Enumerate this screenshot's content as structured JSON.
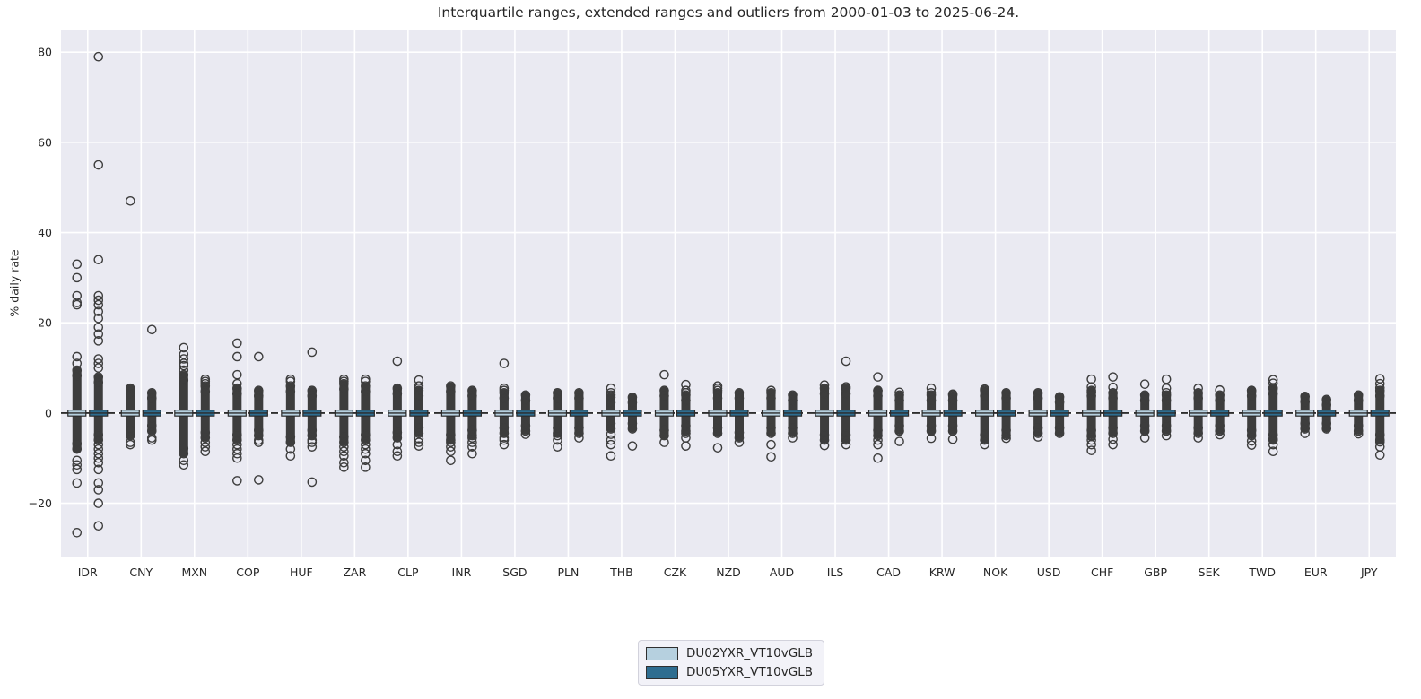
{
  "chart_data": {
    "type": "boxplot",
    "title": "Interquartile ranges, extended ranges and outliers from 2000-01-03 to 2025-06-24.",
    "date_range": {
      "from": "2000-01-03",
      "to": "2025-06-24"
    },
    "xlabel": "",
    "ylabel": "% daily rate",
    "ylim": [
      -32,
      85
    ],
    "yticks": [
      80,
      60,
      40,
      20,
      0,
      -20
    ],
    "grid": true,
    "zero_line": {
      "value": 0,
      "style": "dashed",
      "color": "#111111"
    },
    "legend_position": "bottom-center",
    "box": {
      "q1": -0.65,
      "median": 0,
      "q3": 0.65
    },
    "colors": {
      "plot_background": "#eaeaf2",
      "grid": "#ffffff",
      "ink": "#3d3d3d",
      "text": "#262626"
    },
    "categories": [
      "IDR",
      "CNY",
      "MXN",
      "COP",
      "HUF",
      "ZAR",
      "CLP",
      "INR",
      "SGD",
      "PLN",
      "THB",
      "CZK",
      "NZD",
      "AUD",
      "ILS",
      "CAD",
      "KRW",
      "NOK",
      "USD",
      "CHF",
      "GBP",
      "SEK",
      "TWD",
      "EUR",
      "JPY"
    ],
    "series": [
      {
        "name": "DU02YXR_VT10vGLB",
        "color": "#b6d0df",
        "dense": [
          [
            -8,
            9.5
          ],
          [
            -5,
            5.5
          ],
          [
            -9,
            8.5
          ],
          [
            -6,
            5.5
          ],
          [
            -6.5,
            6
          ],
          [
            -6.5,
            6.5
          ],
          [
            -5.5,
            5.5
          ],
          [
            -6,
            6
          ],
          [
            -4.5,
            4.5
          ],
          [
            -4.5,
            4.5
          ],
          [
            -3.5,
            3.5
          ],
          [
            -5,
            5
          ],
          [
            -4.5,
            4.5
          ],
          [
            -4.5,
            4.5
          ],
          [
            -6,
            5.5
          ],
          [
            -5,
            5
          ],
          [
            -4,
            4
          ],
          [
            -6,
            5
          ],
          [
            -4.5,
            4.5
          ],
          [
            -5,
            5
          ],
          [
            -4,
            4
          ],
          [
            -4.5,
            4.5
          ],
          [
            -5,
            5
          ],
          [
            -3.5,
            3.7
          ],
          [
            -4,
            4
          ]
        ],
        "outliers": [
          [
            33,
            30,
            26,
            24.5,
            24,
            12.5,
            11,
            -10.5,
            -11.5,
            -12.5,
            -15.5,
            -26.5
          ],
          [
            47,
            -6.5,
            -7
          ],
          [
            14.5,
            13,
            12,
            11,
            10.5,
            9.5,
            -10.5,
            -11.5
          ],
          [
            15.5,
            12.5,
            8.5,
            6.5,
            -7,
            -8,
            -9,
            -10,
            -15
          ],
          [
            7.5,
            7,
            -8,
            -9.5
          ],
          [
            7.5,
            7,
            -7.5,
            -8.5,
            -9.5,
            -11,
            -12
          ],
          [
            11.5,
            -7,
            -8.5,
            -9.5
          ],
          [
            -6.5,
            -7.5,
            -8.5,
            -10.5
          ],
          [
            11,
            5.5,
            5,
            -5.5,
            -6,
            -7
          ],
          [
            -5,
            -6,
            -7.5
          ],
          [
            5.5,
            4.5,
            4,
            -4.7,
            -6,
            -7,
            -9.5
          ],
          [
            8.5,
            -6.5
          ],
          [
            6,
            5.5,
            5,
            -7.7
          ],
          [
            5,
            -7,
            -9.7
          ],
          [
            6.2,
            -7.2
          ],
          [
            8,
            5,
            -6,
            -7,
            -10
          ],
          [
            5.5,
            4.5,
            -5.6
          ],
          [
            5.3,
            -7
          ],
          [
            -5.3
          ],
          [
            7.5,
            5.8,
            4.6,
            -5.2,
            -6,
            -7,
            -8.3
          ],
          [
            6.4,
            -5.5
          ],
          [
            5.5,
            -5.5
          ],
          [
            5,
            -6.2,
            -7.1
          ],
          [
            -4.5
          ],
          [
            -4.6
          ]
        ]
      },
      {
        "name": "DU05YXR_VT10vGLB",
        "color": "#2e6d90",
        "dense": [
          [
            -6,
            8
          ],
          [
            -4,
            4.5
          ],
          [
            -5.5,
            6
          ],
          [
            -5,
            5
          ],
          [
            -5,
            5
          ],
          [
            -6,
            6
          ],
          [
            -4.5,
            5
          ],
          [
            -5,
            5
          ],
          [
            -4,
            4
          ],
          [
            -4.5,
            4.5
          ],
          [
            -3.5,
            3.5
          ],
          [
            -4,
            4
          ],
          [
            -5.5,
            4.5
          ],
          [
            -4.5,
            4
          ],
          [
            -6,
            5.5
          ],
          [
            -4,
            4
          ],
          [
            -4,
            4
          ],
          [
            -5,
            4.5
          ],
          [
            -4.5,
            3.6
          ],
          [
            -4.5,
            4.5
          ],
          [
            -4,
            4
          ],
          [
            -4,
            4
          ],
          [
            -6,
            5.5
          ],
          [
            -3.5,
            3
          ],
          [
            -6,
            5
          ]
        ],
        "outliers": [
          [
            79,
            55,
            34,
            26,
            25,
            24,
            22.5,
            21,
            19,
            17.5,
            16,
            12,
            11,
            10,
            -7,
            -8,
            -9,
            -10,
            -11,
            -12.5,
            -15.5,
            -17,
            -20,
            -25
          ],
          [
            18.5,
            -5.5,
            -6
          ],
          [
            7.5,
            7,
            6.5,
            -6.5,
            -7.5,
            -8.5
          ],
          [
            12.5,
            -6,
            -6.5,
            -14.8
          ],
          [
            13.5,
            -6,
            -6.5,
            -7.5,
            -15.3
          ],
          [
            7.5,
            7,
            -7,
            -8,
            -9,
            -10.5,
            -12
          ],
          [
            7.3,
            6,
            5.5,
            -5.7,
            -6.5,
            -7.3
          ],
          [
            -5.5,
            -6.5,
            -7.5,
            -9
          ],
          [
            -4.7
          ],
          [
            -5.5
          ],
          [
            -7.3
          ],
          [
            6.3,
            5,
            4.5,
            -4.5,
            -5.5,
            -7.3
          ],
          [
            -6.5
          ],
          [
            -5.5
          ],
          [
            11.5,
            5.8,
            -7
          ],
          [
            4.6,
            -6.3
          ],
          [
            4.2,
            -5.8
          ],
          [
            -5.6
          ],
          [],
          [
            8,
            5.7,
            -5.8,
            -7
          ],
          [
            7.5,
            5.5,
            4.5,
            -5
          ],
          [
            5.1,
            -4.8
          ],
          [
            7.4,
            6.6,
            5.6,
            -5.8,
            -7,
            -8.5
          ],
          [],
          [
            7.6,
            6.5,
            5.6,
            -6.4,
            -7.5,
            -9.3
          ]
        ]
      }
    ]
  }
}
